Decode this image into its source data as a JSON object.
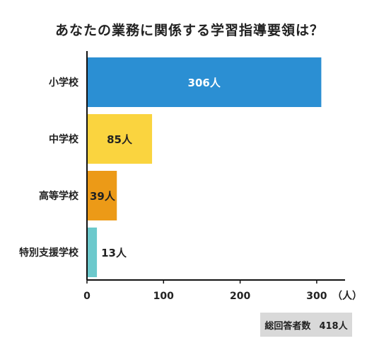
{
  "title": "あなたの業務に関係する学習指導要領は？",
  "chart_data": {
    "type": "bar",
    "orientation": "horizontal",
    "title": "あなたの業務に関係する学習指導要領は？",
    "categories": [
      "小学校",
      "中学校",
      "高等学校",
      "特別支援学校"
    ],
    "values": [
      306,
      85,
      39,
      13
    ],
    "data_labels": [
      "306人",
      "85人",
      "39人",
      "13人"
    ],
    "colors": [
      "#2b8fd3",
      "#fad43f",
      "#ec9a17",
      "#6cc9cc"
    ],
    "label_colors": [
      "#ffffff",
      "#222222",
      "#222222",
      "#222222"
    ],
    "xlim": [
      0,
      300
    ],
    "xticks": [
      0,
      100,
      200,
      300
    ],
    "xunit": "（人）",
    "grid": false
  },
  "footer": {
    "label": "総回答者数",
    "value": "418人"
  }
}
